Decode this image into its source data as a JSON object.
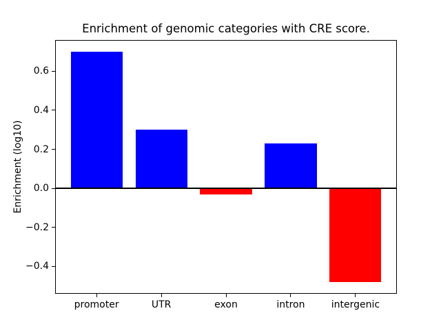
{
  "chart_data": {
    "type": "bar",
    "title": "Enrichment of genomic categories with CRE score.",
    "ylabel": "Enrichment (log10)",
    "xlabel": "",
    "categories": [
      "promoter",
      "UTR",
      "exon",
      "intron",
      "intergenic"
    ],
    "values": [
      0.7,
      0.3,
      -0.03,
      0.23,
      -0.48
    ],
    "positive_color": "#0000ff",
    "negative_color": "#ff0000",
    "bar_width_fraction": 0.8,
    "ylim": [
      -0.54,
      0.76
    ],
    "yticks": [
      0.6,
      0.4,
      0.2,
      0.0,
      -0.2,
      -0.4
    ],
    "ytick_labels": [
      "0.6",
      "0.4",
      "0.2",
      "0.0",
      "−0.2",
      "−0.4"
    ],
    "zero_line": {
      "color": "#000000",
      "width": 2
    },
    "grid": false,
    "legend": false,
    "axis_color": "#000000",
    "text_color": "#000000",
    "background_color": "#ffffff"
  }
}
